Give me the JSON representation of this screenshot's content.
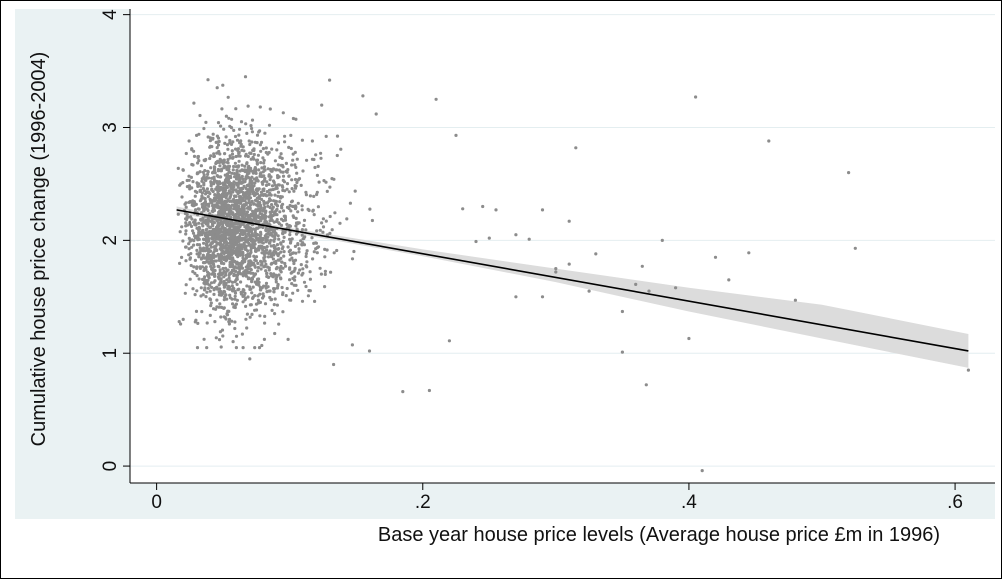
{
  "chart_data": {
    "type": "scatter",
    "title": "",
    "xlabel": "Base year house price levels (Average house price £m in 1996)",
    "ylabel": "Cumulative house price change (1996-2004)",
    "xlim": [
      -0.02,
      0.63
    ],
    "ylim": [
      -0.15,
      4.05
    ],
    "x_ticks": [
      0,
      0.2,
      0.4,
      0.6
    ],
    "x_tick_labels": [
      "0",
      ".2",
      ".4",
      ".6"
    ],
    "y_ticks": [
      0,
      1,
      2,
      3,
      4
    ],
    "y_tick_labels": [
      "0",
      "1",
      "2",
      "3",
      "4"
    ],
    "grid": "horizontal",
    "legend": "none",
    "colors": {
      "points": "#8c8c8c",
      "fit_line": "#000000",
      "ci_band": "#dcdcdc",
      "outer_bg": "#eaf2f3",
      "plot_bg": "#ffffff",
      "grid": "#e4eef0"
    },
    "fit_line": {
      "x": [
        0.015,
        0.61
      ],
      "y": [
        2.27,
        1.02
      ]
    },
    "ci_band": {
      "x": [
        0.015,
        0.1,
        0.2,
        0.3,
        0.4,
        0.5,
        0.61
      ],
      "upper": [
        2.3,
        2.11,
        1.92,
        1.75,
        1.58,
        1.43,
        1.17
      ],
      "lower": [
        2.24,
        2.07,
        1.86,
        1.63,
        1.37,
        1.13,
        0.87
      ]
    },
    "cluster": {
      "count": 2600,
      "x_center": 0.052,
      "x_spread": 0.018,
      "x_min": 0.015,
      "x_max": 0.2,
      "y_center": 2.13,
      "y_spread": 0.38,
      "y_min": 1.05,
      "y_max": 3.45
    },
    "points": [
      {
        "x": 0.017,
        "y": 1.28
      },
      {
        "x": 0.02,
        "y": 1.3
      },
      {
        "x": 0.06,
        "y": 1.15
      },
      {
        "x": 0.07,
        "y": 0.95
      },
      {
        "x": 0.13,
        "y": 3.42
      },
      {
        "x": 0.133,
        "y": 0.9
      },
      {
        "x": 0.155,
        "y": 3.28
      },
      {
        "x": 0.165,
        "y": 3.12
      },
      {
        "x": 0.16,
        "y": 1.02
      },
      {
        "x": 0.185,
        "y": 0.66
      },
      {
        "x": 0.205,
        "y": 0.67
      },
      {
        "x": 0.21,
        "y": 3.25
      },
      {
        "x": 0.225,
        "y": 2.93
      },
      {
        "x": 0.23,
        "y": 2.28
      },
      {
        "x": 0.245,
        "y": 2.3
      },
      {
        "x": 0.25,
        "y": 2.02
      },
      {
        "x": 0.255,
        "y": 2.27
      },
      {
        "x": 0.27,
        "y": 1.5
      },
      {
        "x": 0.27,
        "y": 2.05
      },
      {
        "x": 0.28,
        "y": 2.01
      },
      {
        "x": 0.29,
        "y": 1.5
      },
      {
        "x": 0.29,
        "y": 2.27
      },
      {
        "x": 0.3,
        "y": 1.72
      },
      {
        "x": 0.31,
        "y": 1.79
      },
      {
        "x": 0.31,
        "y": 2.17
      },
      {
        "x": 0.315,
        "y": 2.82
      },
      {
        "x": 0.325,
        "y": 1.55
      },
      {
        "x": 0.33,
        "y": 1.88
      },
      {
        "x": 0.35,
        "y": 1.01
      },
      {
        "x": 0.36,
        "y": 1.61
      },
      {
        "x": 0.365,
        "y": 1.77
      },
      {
        "x": 0.368,
        "y": 0.72
      },
      {
        "x": 0.37,
        "y": 1.55
      },
      {
        "x": 0.39,
        "y": 1.58
      },
      {
        "x": 0.4,
        "y": 1.13
      },
      {
        "x": 0.405,
        "y": 3.27
      },
      {
        "x": 0.42,
        "y": 1.85
      },
      {
        "x": 0.43,
        "y": 1.65
      },
      {
        "x": 0.445,
        "y": 1.89
      },
      {
        "x": 0.41,
        "y": -0.04
      },
      {
        "x": 0.46,
        "y": 2.88
      },
      {
        "x": 0.48,
        "y": 1.47
      },
      {
        "x": 0.52,
        "y": 2.6
      },
      {
        "x": 0.525,
        "y": 1.93
      },
      {
        "x": 0.61,
        "y": 0.85
      },
      {
        "x": 0.38,
        "y": 2.0
      },
      {
        "x": 0.35,
        "y": 1.37
      },
      {
        "x": 0.3,
        "y": 1.75
      },
      {
        "x": 0.24,
        "y": 1.99
      },
      {
        "x": 0.22,
        "y": 1.11
      }
    ]
  }
}
